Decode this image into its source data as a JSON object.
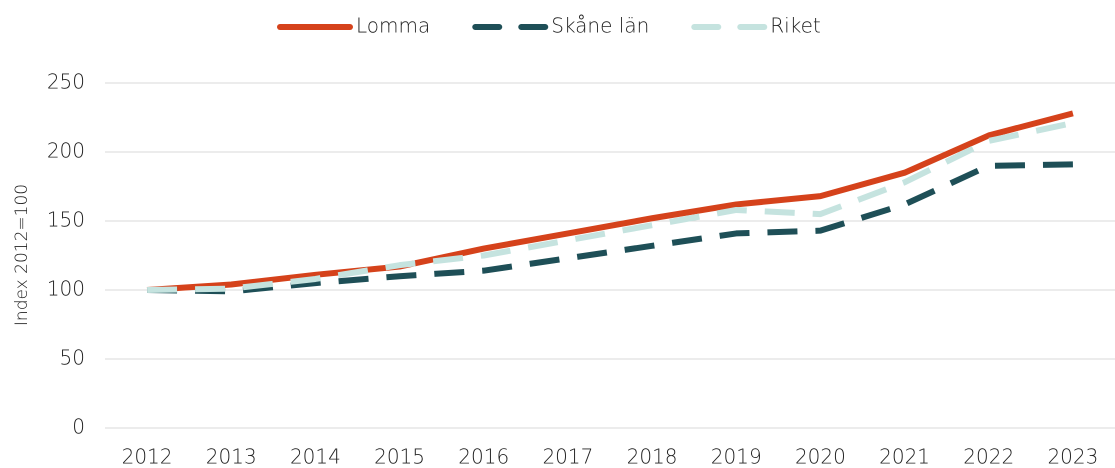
{
  "chart_data": {
    "type": "line",
    "y_label": "Index 2012=100",
    "categories": [
      "2012",
      "2013",
      "2014",
      "2015",
      "2016",
      "2017",
      "2018",
      "2019",
      "2020",
      "2021",
      "2022",
      "2023"
    ],
    "series": [
      {
        "name": "Lomma",
        "color": "#d5421b",
        "dashed": false,
        "values": [
          100,
          104,
          111,
          117,
          130,
          141,
          152,
          162,
          168,
          185,
          212,
          228
        ]
      },
      {
        "name": "Skåne län",
        "color": "#1e4f57",
        "dashed": true,
        "values": [
          100,
          99,
          105,
          110,
          114,
          123,
          132,
          141,
          143,
          162,
          190,
          191
        ]
      },
      {
        "name": "Riket",
        "color": "#c5e3df",
        "dashed": true,
        "values": [
          100,
          101,
          108,
          118,
          125,
          136,
          147,
          158,
          155,
          178,
          208,
          221
        ]
      }
    ],
    "ylim": [
      0,
      250
    ],
    "yticks": [
      0,
      50,
      100,
      150,
      200,
      250
    ],
    "grid": true
  }
}
